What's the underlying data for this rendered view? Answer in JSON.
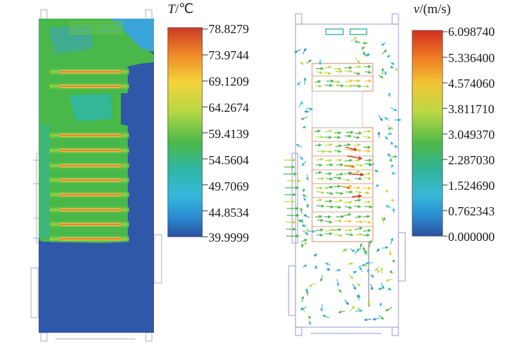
{
  "temperature_panel": {
    "title_var": "T",
    "title_unit": "/℃",
    "scale_values": [
      "78.8279",
      "73.9744",
      "69.1209",
      "64.2674",
      "59.4139",
      "54.5604",
      "49.7069",
      "44.8534",
      "39.9999"
    ],
    "colors": [
      "#c93a24",
      "#f08a28",
      "#f3d23a",
      "#b7d944",
      "#49b84a",
      "#2fb6a7",
      "#36b9da",
      "#2a8fd4",
      "#2c5aa8"
    ]
  },
  "velocity_panel": {
    "title_var": "v",
    "title_unit": "/(m/s)",
    "scale_values": [
      "6.098740",
      "5.336400",
      "4.574060",
      "3.811710",
      "3.049370",
      "2.287030",
      "1.524690",
      "0.762343",
      "0.000000"
    ],
    "colors": [
      "#d32f1f",
      "#ef7a22",
      "#f2c535",
      "#b9d845",
      "#4cb848",
      "#2fb39a",
      "#38b9d8",
      "#2a8dd2",
      "#2d59a6"
    ]
  }
}
